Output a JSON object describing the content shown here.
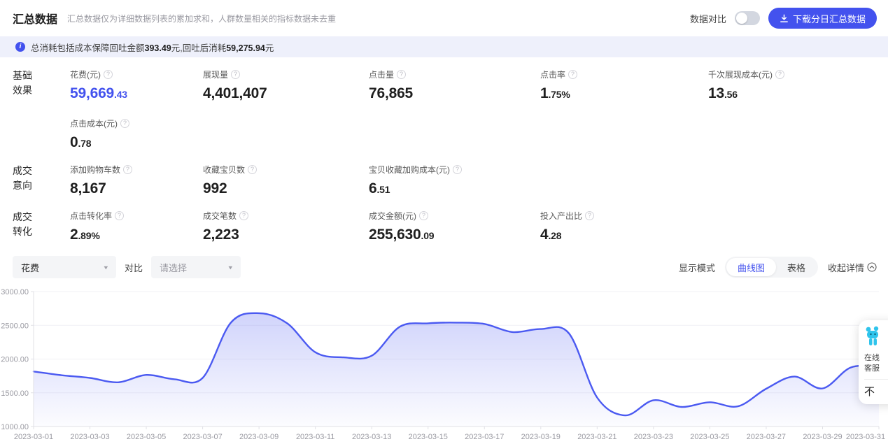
{
  "header": {
    "title": "汇总数据",
    "subtitle": "汇总数据仅为详细数据列表的累加求和，人群数量相关的指标数据未去重",
    "compare_toggle_label": "数据对比",
    "download_button": "下载分日汇总数据"
  },
  "notice": {
    "text1": "总消耗包括成本保障回吐金额",
    "bold1": "393.49",
    "text2": "元,回吐后消耗",
    "bold2": "59,275.94",
    "text3": "元"
  },
  "sections": [
    {
      "name": [
        "基础",
        "效果"
      ],
      "rows": [
        [
          {
            "label": "花费(元)",
            "int": "59,669",
            "dec": ".43",
            "highlight": true
          },
          {
            "label": "展现量",
            "int": "4,401,407",
            "dec": ""
          },
          {
            "label": "点击量",
            "int": "76,865",
            "dec": ""
          },
          {
            "label": "点击率",
            "int": "1",
            "dec": ".75%"
          },
          {
            "label": "千次展现成本(元)",
            "int": "13",
            "dec": ".56"
          }
        ],
        [
          {
            "label": "点击成本(元)",
            "int": "0",
            "dec": ".78"
          }
        ]
      ]
    },
    {
      "name": [
        "成交",
        "意向"
      ],
      "rows": [
        [
          {
            "label": "添加购物车数",
            "int": "8,167",
            "dec": ""
          },
          {
            "label": "收藏宝贝数",
            "int": "992",
            "dec": ""
          },
          {
            "label": "宝贝收藏加购成本(元)",
            "int": "6",
            "dec": ".51"
          }
        ]
      ]
    },
    {
      "name": [
        "成交",
        "转化"
      ],
      "rows": [
        [
          {
            "label": "点击转化率",
            "int": "2",
            "dec": ".89%"
          },
          {
            "label": "成交笔数",
            "int": "2,223",
            "dec": ""
          },
          {
            "label": "成交金额(元)",
            "int": "255,630",
            "dec": ".09"
          },
          {
            "label": "投入产出比",
            "int": "4",
            "dec": ".28"
          }
        ]
      ]
    }
  ],
  "toolbar": {
    "metric_select": "花费",
    "compare_label": "对比",
    "compare_placeholder": "请选择",
    "display_mode_label": "显示模式",
    "tabs": [
      "曲线图",
      "表格"
    ],
    "collapse_label": "收起详情"
  },
  "chart_data": {
    "type": "area",
    "title": "",
    "metric": "花费",
    "x": [
      "2023-03-01",
      "2023-03-02",
      "2023-03-03",
      "2023-03-04",
      "2023-03-05",
      "2023-03-06",
      "2023-03-07",
      "2023-03-08",
      "2023-03-09",
      "2023-03-10",
      "2023-03-11",
      "2023-03-12",
      "2023-03-13",
      "2023-03-14",
      "2023-03-15",
      "2023-03-16",
      "2023-03-17",
      "2023-03-18",
      "2023-03-19",
      "2023-03-20",
      "2023-03-21",
      "2023-03-22",
      "2023-03-23",
      "2023-03-24",
      "2023-03-25",
      "2023-03-26",
      "2023-03-27",
      "2023-03-28",
      "2023-03-29",
      "2023-03-30",
      "2023-03-31"
    ],
    "values": [
      1815,
      1760,
      1720,
      1655,
      1765,
      1700,
      1720,
      2540,
      2680,
      2530,
      2100,
      2025,
      2050,
      2480,
      2530,
      2540,
      2520,
      2400,
      2445,
      2380,
      1430,
      1165,
      1390,
      1290,
      1360,
      1300,
      1560,
      1740,
      1565,
      1875,
      1885
    ],
    "ylim": [
      1000,
      3000
    ],
    "y_ticks": [
      3000,
      2500,
      2000,
      1500,
      1000
    ],
    "x_tick_every": 2,
    "grid": true,
    "legend": "none",
    "line_color": "#4b5af1",
    "fill_top": "rgba(101,112,242,0.30)",
    "fill_bottom": "rgba(101,112,242,0.02)",
    "axis_color": "#e0e0e6",
    "tick_text_color": "#9a9aa2"
  },
  "colors": {
    "accent": "#4352ee",
    "value_text": "#1f1f1f",
    "notice_bg": "#eef0fb"
  },
  "cs_widget": {
    "line1": "在线",
    "line2": "客服",
    "more": "不"
  }
}
